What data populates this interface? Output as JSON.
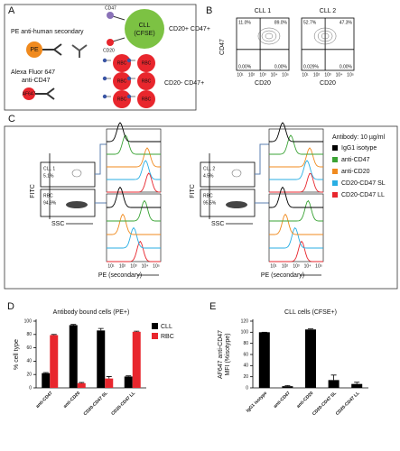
{
  "panel_a": {
    "label": "A",
    "pe_secondary": "PE anti-human secondary",
    "pe": "PE",
    "af647_antibody": "Alexa Fluor 647",
    "af647_antibody_2": "anti-CD47",
    "af647": "AF647",
    "cd47": "CD47",
    "cll": "CLL",
    "cfse": "(CFSE)",
    "cd20": "CD20",
    "cll_phenotype": "CD20+ CD47+",
    "rbc": "RBC",
    "rbc_phenotype": "CD20- CD47+"
  },
  "panel_b": {
    "label": "B",
    "y_label": "CD47",
    "x_label": "CD20",
    "plots": [
      {
        "title": "CLL 1",
        "quadrants": [
          "11.0%",
          "89.0%",
          "0.00%",
          "0.00%"
        ]
      },
      {
        "title": "CLL 2",
        "quadrants": [
          "52.7%",
          "47.3%",
          "0.029%",
          "0.00%"
        ]
      }
    ]
  },
  "panel_c": {
    "label": "C",
    "y_label": "FITC",
    "x_label": "SSC",
    "hist_x_label": "PE (secondary)",
    "legend_title": "Antibody: 10 µg/ml",
    "gates": [
      {
        "cll": "CLL 1",
        "cll_pct": "5.1%",
        "rbc": "RBC",
        "rbc_pct": "94.9%"
      },
      {
        "cll": "CLL 2",
        "cll_pct": "4.5%",
        "rbc": "RBC",
        "rbc_pct": "95.5%"
      }
    ],
    "legend": [
      {
        "name": "IgG1 isotype",
        "color": "#000000"
      },
      {
        "name": "anti-CD47",
        "color": "#3aa335"
      },
      {
        "name": "anti-CD20",
        "color": "#f08a1e"
      },
      {
        "name": "CD20-CD47 SL",
        "color": "#29aee3"
      },
      {
        "name": "CD20-CD47 LL",
        "color": "#e8262d"
      }
    ]
  },
  "flow_ticks": [
    "10¹",
    "10²",
    "10³",
    "10⁴",
    "10⁵"
  ],
  "chart_data": [
    {
      "type": "bar",
      "label": "D",
      "title": "Antibody bound cells (PE+)",
      "y_label": "% cell type",
      "categories": [
        "anti-CD47",
        "anti-CD20",
        "CD20-CD47 SL",
        "CD20-CD47 LL"
      ],
      "series": [
        {
          "name": "CLL",
          "color": "#000000",
          "values": [
            22,
            94,
            86,
            17
          ],
          "errors": [
            1,
            1,
            3,
            1
          ]
        },
        {
          "name": "RBC",
          "color": "#e8262d",
          "values": [
            79,
            7,
            14,
            84
          ],
          "errors": [
            1,
            1,
            3,
            1
          ]
        }
      ],
      "ylim": [
        0,
        100
      ],
      "yticks": [
        0,
        20,
        40,
        60,
        80,
        100
      ]
    },
    {
      "type": "bar",
      "label": "E",
      "title": "CLL cells (CFSE+)",
      "y_label": [
        "AF647 anti-CD47",
        "MFI (%isotype)"
      ],
      "categories": [
        "IgG1 isotype",
        "anti-CD47",
        "anti-CD20",
        "CD20-CD47 SL",
        "CD20-CD47 LL"
      ],
      "series": [
        {
          "name": "CLL",
          "color": "#000000",
          "values": [
            100,
            3,
            105,
            14,
            7
          ],
          "errors": [
            0,
            1,
            1,
            9,
            3
          ]
        }
      ],
      "ylim": [
        0,
        120
      ],
      "yticks": [
        0,
        20,
        40,
        60,
        80,
        100,
        120
      ]
    }
  ]
}
